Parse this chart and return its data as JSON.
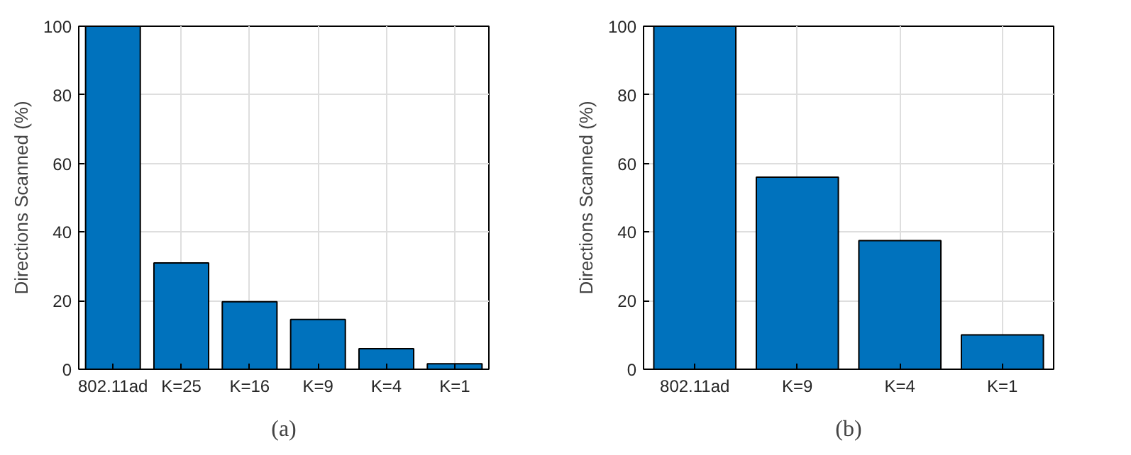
{
  "chart_data": [
    {
      "type": "bar",
      "title": "(a)",
      "ylabel": "Directions Scanned (%)",
      "categories": [
        "802.11ad",
        "K=25",
        "K=16",
        "K=9",
        "K=4",
        "K=1"
      ],
      "values": [
        100,
        31,
        19.7,
        14.5,
        6,
        1.6
      ],
      "color": "#0072bd",
      "ylim": [
        0,
        100
      ],
      "yticks": [
        0,
        20,
        40,
        60,
        80,
        100
      ],
      "grid": true
    },
    {
      "type": "bar",
      "title": "(b)",
      "ylabel": "Directions Scanned (%)",
      "categories": [
        "802.11ad",
        "K=9",
        "K=4",
        "K=1"
      ],
      "values": [
        100,
        56,
        37.5,
        10
      ],
      "color": "#0072bd",
      "ylim": [
        0,
        100
      ],
      "yticks": [
        0,
        20,
        40,
        60,
        80,
        100
      ],
      "grid": true
    }
  ]
}
